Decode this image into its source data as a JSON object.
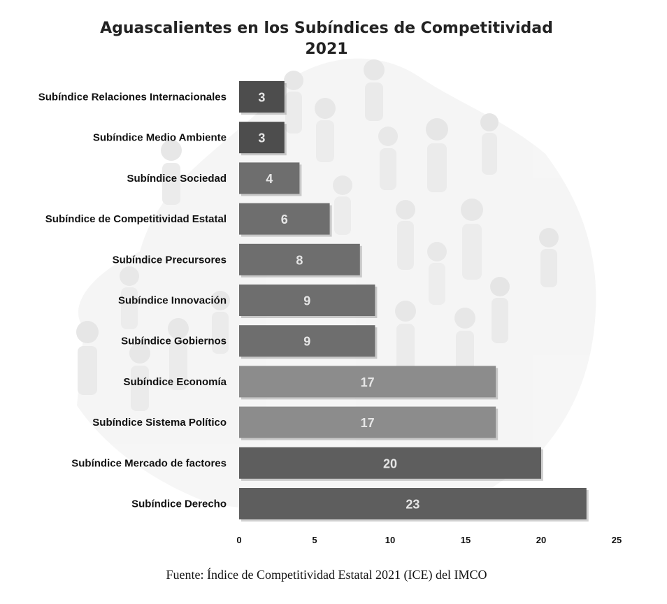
{
  "chart_data": {
    "type": "bar",
    "orientation": "horizontal",
    "title_lines": [
      "Aguascalientes en los Subíndices de Competitividad",
      "2021"
    ],
    "categories": [
      "Subíndice Relaciones Internacionales",
      "Subíndice Medio Ambiente",
      "Subíndice Sociedad",
      "Subíndice de Competitividad Estatal",
      "Subíndice Precursores",
      "Subíndice Innovación",
      "Subíndice Gobiernos",
      "Subíndice Economía",
      "Subíndice Sistema Político",
      "Subíndice Mercado de factores",
      "Subíndice Derecho"
    ],
    "values": [
      3,
      3,
      4,
      6,
      8,
      9,
      9,
      17,
      17,
      20,
      23
    ],
    "bar_colors": [
      "#4d4d4d",
      "#4d4d4d",
      "#6e6e6e",
      "#6e6e6e",
      "#6e6e6e",
      "#6e6e6e",
      "#6e6e6e",
      "#8c8c8c",
      "#8c8c8c",
      "#5e5e5e",
      "#5e5e5e"
    ],
    "xlim": [
      0,
      25
    ],
    "xticks": [
      0,
      5,
      10,
      15,
      20,
      25
    ],
    "grid": false,
    "data_labels": true
  },
  "source": "Fuente: Índice de Competitividad Estatal 2021 (ICE) del IMCO"
}
